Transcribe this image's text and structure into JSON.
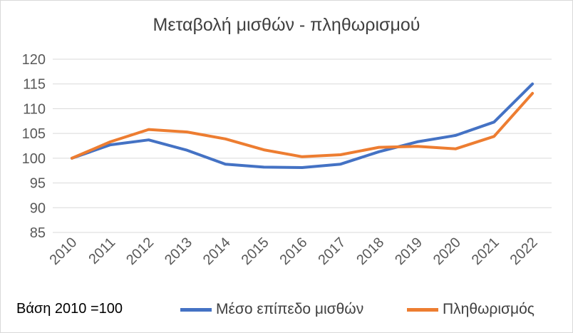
{
  "chart_data": {
    "type": "line",
    "title": "Μεταβολή μισθών - πληθωρισμού",
    "note": "Βάση 2010 =100",
    "categories": [
      "2010",
      "2011",
      "2012",
      "2013",
      "2014",
      "2015",
      "2016",
      "2017",
      "2018",
      "2019",
      "2020",
      "2021",
      "2022"
    ],
    "series": [
      {
        "name": "Μέσο επίπεδο μισθών",
        "color": "#4472c4",
        "values": [
          100,
          102.7,
          103.7,
          101.6,
          98.8,
          98.2,
          98.1,
          98.8,
          101.3,
          103.3,
          104.6,
          107.3,
          115.0
        ]
      },
      {
        "name": "Πληθωρισμός",
        "color": "#ed7d31",
        "values": [
          100,
          103.3,
          105.8,
          105.3,
          103.9,
          101.7,
          100.3,
          100.7,
          102.2,
          102.4,
          101.9,
          104.4,
          113.1
        ]
      }
    ],
    "yticks": [
      85,
      90,
      95,
      100,
      105,
      110,
      115,
      120
    ],
    "ylim": [
      85,
      120
    ],
    "grid": true,
    "legend": "bottom",
    "gridline_color": "#d9d9d9"
  }
}
